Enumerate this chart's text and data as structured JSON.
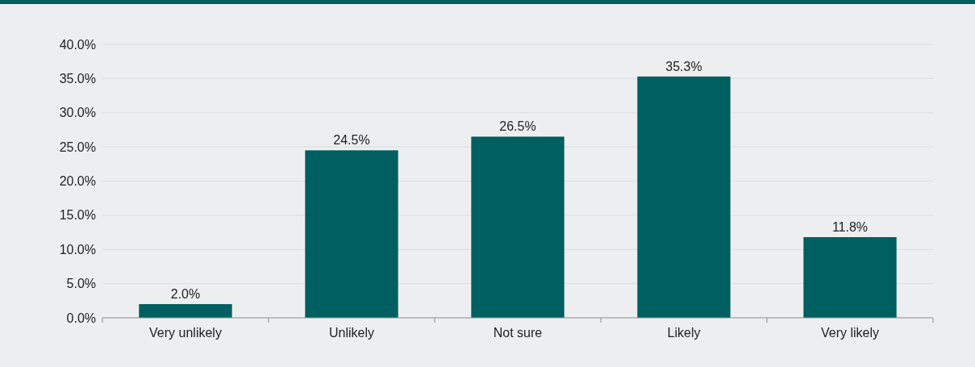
{
  "chart_data": {
    "type": "bar",
    "categories": [
      "Very unlikely",
      "Unlikely",
      "Not sure",
      "Likely",
      "Very likely"
    ],
    "values": [
      2.0,
      24.5,
      26.5,
      35.3,
      11.8
    ],
    "value_labels": [
      "2.0%",
      "24.5%",
      "26.5%",
      "35.3%",
      "11.8%"
    ],
    "color": "#005f60",
    "ylim": [
      0,
      40
    ],
    "yticks": [
      {
        "value": 0,
        "label": "0.0%"
      },
      {
        "value": 5,
        "label": "5.0%"
      },
      {
        "value": 10,
        "label": "10.0%"
      },
      {
        "value": 15,
        "label": "15.0%"
      },
      {
        "value": 20,
        "label": "20.0%"
      },
      {
        "value": 25,
        "label": "25.0%"
      },
      {
        "value": 30,
        "label": "30.0%"
      },
      {
        "value": 35,
        "label": "35.0%"
      },
      {
        "value": 40,
        "label": "40.0%"
      }
    ],
    "grid": "y"
  }
}
